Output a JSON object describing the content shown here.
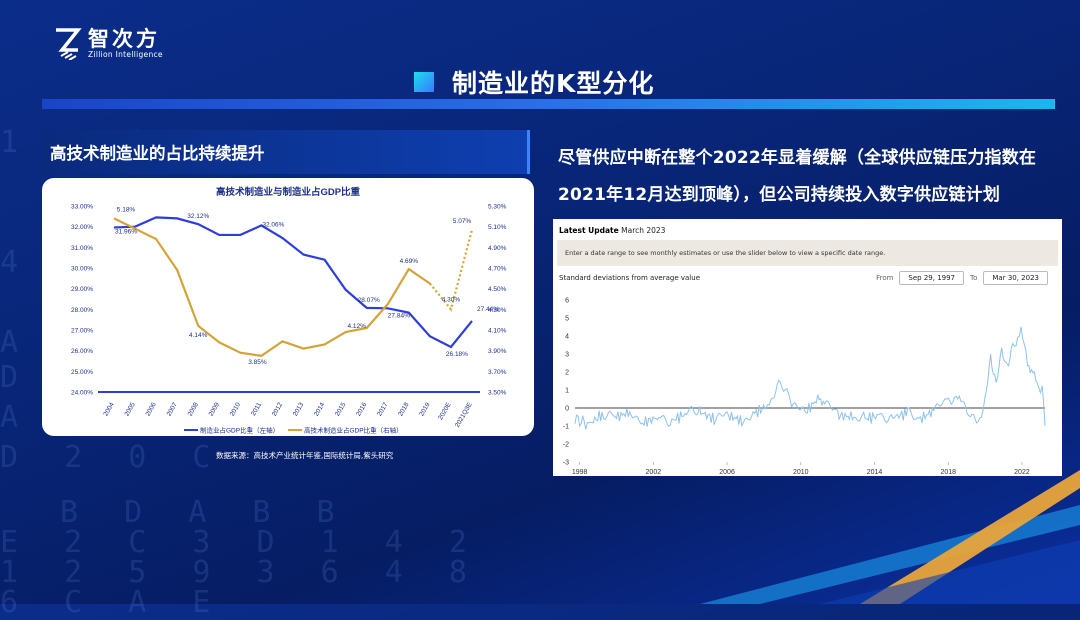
{
  "brand": {
    "name_cn": "智次方",
    "name_en": "Zillion Intelligence"
  },
  "slide_title": "制造业的K型分化",
  "left_heading": "高技术制造业的占比持续提升",
  "right_text": "尽管供应中断在整个2022年显着缓解（全球供应链压力指数在2021年12月达到顶峰），但公司持续投入数字供应链计划",
  "source_text": "数据来源：高技术产业统计年鉴,国际统计局,紫头研究",
  "colors": {
    "blue_series": "#2f3ddb",
    "gold_series": "#d4a43a",
    "accent": "#1ab8ee"
  },
  "chart_data": [
    {
      "type": "line",
      "title": "高技术制造业与制造业占GDP比重",
      "categories": [
        "2004",
        "2005",
        "2006",
        "2007",
        "2008",
        "2009",
        "2010",
        "2011",
        "2012",
        "2013",
        "2014",
        "2015",
        "2016",
        "2017",
        "2018",
        "2019",
        "2020E",
        "2021Q3E"
      ],
      "ylim_left": [
        24,
        33
      ],
      "ylim_right": [
        3.5,
        5.3
      ],
      "left_ticks": [
        "24.00%",
        "25.00%",
        "26.00%",
        "27.00%",
        "28.00%",
        "29.00%",
        "30.00%",
        "31.00%",
        "32.00%",
        "33.00%"
      ],
      "right_ticks": [
        "3.50%",
        "3.70%",
        "3.90%",
        "4.10%",
        "4.30%",
        "4.50%",
        "4.70%",
        "4.90%",
        "5.10%",
        "5.30%"
      ],
      "series": [
        {
          "name": "制造业占GDP比重（左轴）",
          "axis": "left",
          "values": [
            31.96,
            32.0,
            32.45,
            32.4,
            32.12,
            31.6,
            31.6,
            32.06,
            31.45,
            30.65,
            30.4,
            28.95,
            28.07,
            28.05,
            27.84,
            26.7,
            26.18,
            27.44
          ]
        },
        {
          "name": "高技术制造业占GDP比重（右轴）",
          "axis": "right",
          "values": [
            5.18,
            5.08,
            4.98,
            4.68,
            4.14,
            3.98,
            3.88,
            3.85,
            3.99,
            3.92,
            3.96,
            4.08,
            4.12,
            4.35,
            4.69,
            4.55,
            4.3,
            5.07
          ],
          "dotted_from_index": 15
        }
      ],
      "data_labels": {
        "blue": {
          "0": "31.96%",
          "4": "32.12%",
          "7": "32.06%",
          "12": "28.07%",
          "14": "27.84%",
          "16": "26.18%",
          "17": "27.44%"
        },
        "gold": {
          "0": "5.18%",
          "4": "4.14%",
          "7": "3.85%",
          "12": "4.12%",
          "14": "4.69%",
          "16": "4.30%",
          "17": "5.07%"
        }
      },
      "legend_placement": "bottom"
    },
    {
      "type": "line",
      "header_label": "Latest Update",
      "header_value": "March 2023",
      "note": "Enter a date range to see monthly estimates or use the slider below to view a specific date range.",
      "ylabel": "Standard deviations from average value",
      "from_label": "From",
      "from_value": "Sep 29, 1997",
      "to_label": "To",
      "to_value": "Mar 30, 2023",
      "x_ticks": [
        "1998",
        "2002",
        "2006",
        "2010",
        "2014",
        "2018",
        "2022"
      ],
      "y_ticks": [
        "6",
        "5",
        "4",
        "3",
        "2",
        "1",
        "0",
        "-1",
        "-2",
        "-3"
      ],
      "ylim": [
        -3,
        6
      ],
      "xlim": [
        1997.75,
        2023.25
      ],
      "series": [
        {
          "name": "",
          "x": [
            1997.75,
            1998.5,
            1999.3,
            2000.0,
            2000.8,
            2001.5,
            2002.3,
            2003.0,
            2003.8,
            2004.5,
            2005.3,
            2006.0,
            2006.8,
            2007.5,
            2008.3,
            2008.9,
            2009.5,
            2010.2,
            2011.0,
            2011.3,
            2012.0,
            2012.8,
            2013.5,
            2014.3,
            2015.0,
            2015.8,
            2016.5,
            2017.3,
            2018.0,
            2018.6,
            2019.2,
            2019.8,
            2020.0,
            2020.3,
            2020.6,
            2020.9,
            2021.2,
            2021.5,
            2021.95,
            2022.3,
            2022.6,
            2022.9,
            2023.1,
            2023.25
          ],
          "y": [
            -0.6,
            -0.9,
            -0.3,
            -0.5,
            -0.2,
            -0.8,
            -0.5,
            -0.7,
            -0.3,
            -0.2,
            -0.6,
            -0.4,
            -0.7,
            -0.3,
            0.2,
            1.4,
            0.3,
            -0.3,
            0.6,
            0.3,
            -0.4,
            -0.5,
            -0.6,
            -0.4,
            -0.5,
            -0.3,
            -0.6,
            -0.1,
            0.4,
            0.8,
            -0.3,
            -0.6,
            0.3,
            2.9,
            1.3,
            3.0,
            2.4,
            3.4,
            4.3,
            2.5,
            2.0,
            1.0,
            1.2,
            -1.0
          ]
        }
      ]
    }
  ]
}
